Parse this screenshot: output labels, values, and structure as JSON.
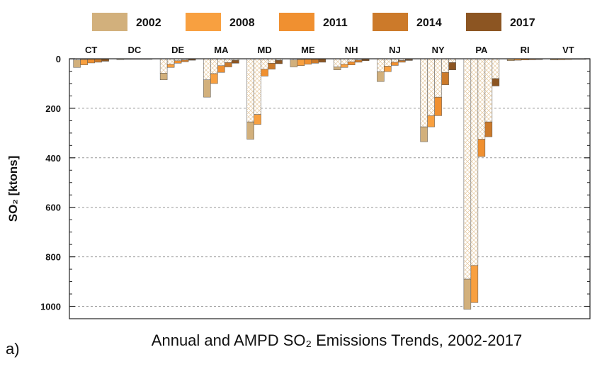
{
  "figure_label": "a)",
  "chart_data": {
    "type": "bar",
    "orientation": "inverted",
    "title": "Annual and AMPD SO₂ Emissions Trends, 2002-2017",
    "ylabel": "SO₂ [ktons]",
    "xlabel": "",
    "ylim": [
      0,
      1050
    ],
    "yticks": [
      0,
      200,
      400,
      600,
      800,
      1000
    ],
    "grid": "horizontal-dashed",
    "legend_position": "top",
    "bar_style": "stacked: AMPD portion hatched, remaining annual portion solid",
    "categories": [
      "CT",
      "DC",
      "DE",
      "MA",
      "MD",
      "ME",
      "NH",
      "NJ",
      "NY",
      "PA",
      "RI",
      "VT"
    ],
    "series": [
      {
        "name": "2002",
        "color": "#d2b07c",
        "total": [
          35,
          3,
          85,
          155,
          325,
          33,
          45,
          92,
          335,
          1012,
          8,
          5
        ],
        "ampd": [
          5,
          1,
          58,
          85,
          255,
          5,
          33,
          52,
          275,
          890,
          1,
          0
        ]
      },
      {
        "name": "2008",
        "color": "#f8a040",
        "total": [
          25,
          2,
          35,
          100,
          265,
          28,
          35,
          52,
          275,
          985,
          6,
          4
        ],
        "ampd": [
          3,
          0,
          22,
          60,
          225,
          3,
          22,
          30,
          230,
          835,
          0,
          0
        ]
      },
      {
        "name": "2011",
        "color": "#f09030",
        "total": [
          17,
          2,
          18,
          55,
          70,
          22,
          25,
          27,
          230,
          395,
          5,
          3
        ],
        "ampd": [
          2,
          0,
          8,
          28,
          42,
          2,
          12,
          14,
          155,
          325,
          0,
          0
        ]
      },
      {
        "name": "2014",
        "color": "#cc7a2a",
        "total": [
          14,
          1,
          12,
          33,
          42,
          18,
          14,
          14,
          105,
          315,
          4,
          2
        ],
        "ampd": [
          1,
          0,
          5,
          15,
          18,
          2,
          5,
          7,
          55,
          255,
          0,
          0
        ]
      },
      {
        "name": "2017",
        "color": "#8c5522",
        "total": [
          10,
          1,
          6,
          18,
          20,
          14,
          8,
          7,
          45,
          110,
          3,
          2
        ],
        "ampd": [
          1,
          0,
          2,
          6,
          6,
          1,
          2,
          3,
          15,
          80,
          0,
          0
        ]
      }
    ]
  }
}
